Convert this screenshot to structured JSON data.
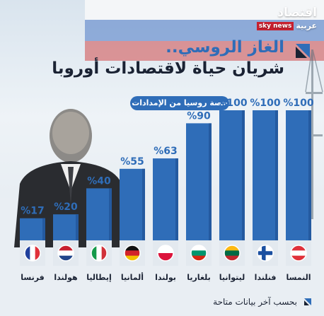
{
  "logo": {
    "main": "اقتصاد",
    "sub": "عربية",
    "news": "sky news"
  },
  "header": {
    "title_line1": "الغاز الروسي..",
    "title_line2": "شريان حياة لاقتصادات أوروبا",
    "legend": "حصة روسيا من الإمدادات"
  },
  "footnote": "بحسب آخر بيانات متاحة",
  "colors": {
    "bar": "#2f6db8",
    "bar_dark": "#245aa0",
    "base": "#e3e9ef",
    "title_blue": "#2f6db8",
    "title_dark": "#1a2233"
  },
  "chart_data": {
    "type": "bar",
    "categories": [
      "فرنسا",
      "هولندا",
      "إيطاليا",
      "ألمانيا",
      "بولندا",
      "بلغاريا",
      "ليتوانيا",
      "فنلندا",
      "النمسا"
    ],
    "values": [
      17,
      20,
      40,
      55,
      63,
      90,
      100,
      100,
      100
    ],
    "value_labels": [
      "%17",
      "%20",
      "%40",
      "%55",
      "%63",
      "%90",
      "%100",
      "%100",
      "%100"
    ],
    "flags": [
      "france-flag",
      "netherlands-flag",
      "italy-flag",
      "germany-flag",
      "poland-flag",
      "bulgaria-flag",
      "lithuania-flag",
      "finland-flag",
      "austria-flag"
    ],
    "ylim": [
      0,
      100
    ],
    "series": [
      {
        "name": "حصة روسيا من الإمدادات",
        "values": [
          17,
          20,
          40,
          55,
          63,
          90,
          100,
          100,
          100
        ]
      }
    ]
  }
}
